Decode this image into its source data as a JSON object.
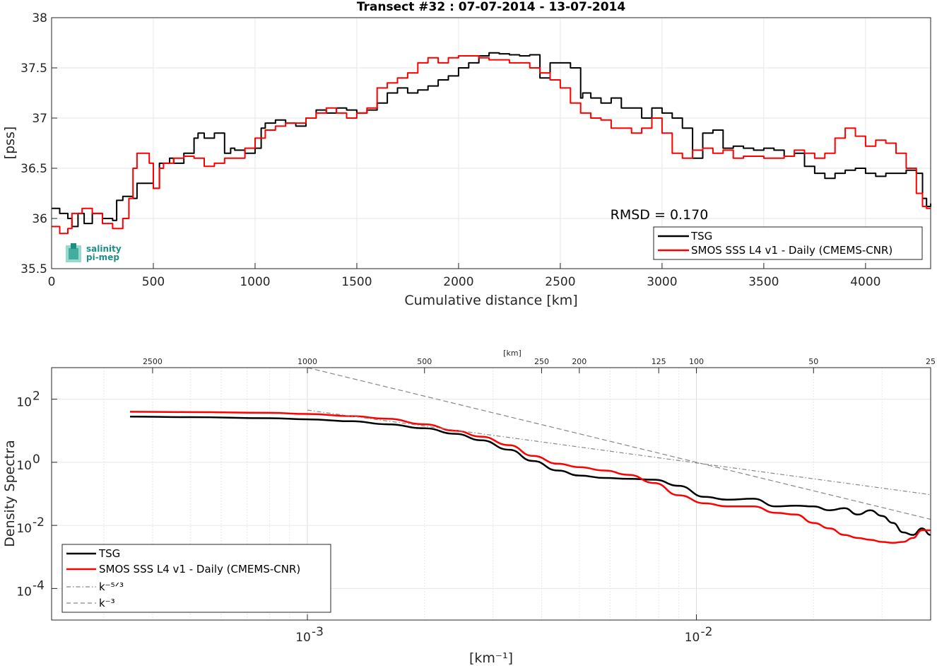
{
  "chart_data": [
    {
      "type": "line",
      "title": "Transect #32 : 07-07-2014 - 13-07-2014",
      "xlabel": "Cumulative distance [km]",
      "ylabel": "[pss]",
      "xlim": [
        0,
        4320
      ],
      "ylim": [
        35.5,
        38
      ],
      "xticks": [
        0,
        500,
        1000,
        1500,
        2000,
        2500,
        3000,
        3500,
        4000
      ],
      "yticks": [
        35.5,
        36,
        36.5,
        37,
        37.5,
        38
      ],
      "grid": true,
      "legend_position": "bottom-right",
      "annotation": "RMSD = 0.170",
      "logo": {
        "line1": "salinity",
        "line2": "pi-mep"
      },
      "series": [
        {
          "name": "TSG",
          "color": "#000000",
          "x": [
            0,
            40,
            80,
            100,
            130,
            160,
            200,
            250,
            300,
            320,
            350,
            400,
            420,
            450,
            500,
            530,
            550,
            580,
            600,
            650,
            700,
            720,
            750,
            800,
            850,
            880,
            900,
            950,
            1000,
            1030,
            1050,
            1100,
            1150,
            1200,
            1250,
            1300,
            1350,
            1400,
            1450,
            1500,
            1550,
            1600,
            1650,
            1700,
            1750,
            1800,
            1850,
            1900,
            1950,
            2000,
            2050,
            2100,
            2150,
            2200,
            2250,
            2300,
            2350,
            2400,
            2450,
            2500,
            2550,
            2600,
            2610,
            2650,
            2700,
            2750,
            2800,
            2850,
            2900,
            2950,
            3000,
            3050,
            3100,
            3150,
            3200,
            3250,
            3300,
            3350,
            3400,
            3450,
            3500,
            3550,
            3600,
            3650,
            3700,
            3750,
            3800,
            3850,
            3900,
            3950,
            4000,
            4050,
            4100,
            4150,
            4200,
            4250,
            4280,
            4300,
            4320
          ],
          "y": [
            36.1,
            36.05,
            36.0,
            35.92,
            36.05,
            35.95,
            36.05,
            36.0,
            35.98,
            36.18,
            36.22,
            36.2,
            36.35,
            36.35,
            36.3,
            36.55,
            36.55,
            36.6,
            36.55,
            36.65,
            36.8,
            36.85,
            36.8,
            36.85,
            36.65,
            36.7,
            36.68,
            36.65,
            36.7,
            36.9,
            36.95,
            36.98,
            36.95,
            36.92,
            37.0,
            37.08,
            37.05,
            37.1,
            37.08,
            37.05,
            37.08,
            37.15,
            37.25,
            37.3,
            37.25,
            37.28,
            37.32,
            37.38,
            37.42,
            37.5,
            37.55,
            37.62,
            37.65,
            37.64,
            37.63,
            37.62,
            37.63,
            37.4,
            37.55,
            37.55,
            37.5,
            37.2,
            37.25,
            37.2,
            37.15,
            37.2,
            37.1,
            37.1,
            37.0,
            37.1,
            37.05,
            37.0,
            36.9,
            36.6,
            36.85,
            36.88,
            36.7,
            36.72,
            36.7,
            36.68,
            36.7,
            36.68,
            36.62,
            36.65,
            36.52,
            36.45,
            36.4,
            36.45,
            36.48,
            36.5,
            36.45,
            36.42,
            36.45,
            36.45,
            36.48,
            36.45,
            36.2,
            36.12,
            36.15
          ]
        },
        {
          "name": "SMOS SSS L4 v1 - Daily (CMEMS-CNR)",
          "color": "#ff0000",
          "x": [
            0,
            40,
            80,
            100,
            150,
            200,
            250,
            300,
            350,
            380,
            400,
            420,
            450,
            480,
            500,
            530,
            550,
            580,
            600,
            650,
            700,
            750,
            800,
            850,
            900,
            950,
            1000,
            1050,
            1100,
            1150,
            1200,
            1250,
            1300,
            1350,
            1400,
            1450,
            1500,
            1550,
            1600,
            1650,
            1700,
            1750,
            1800,
            1850,
            1900,
            1950,
            2000,
            2050,
            2100,
            2150,
            2200,
            2250,
            2300,
            2350,
            2400,
            2450,
            2500,
            2550,
            2600,
            2650,
            2700,
            2750,
            2800,
            2850,
            2900,
            2950,
            3000,
            3050,
            3100,
            3150,
            3200,
            3250,
            3300,
            3350,
            3400,
            3450,
            3500,
            3550,
            3600,
            3650,
            3700,
            3750,
            3800,
            3850,
            3900,
            3950,
            4000,
            4050,
            4100,
            4150,
            4200,
            4250,
            4280,
            4300,
            4320
          ],
          "y": [
            35.92,
            35.85,
            35.9,
            36.05,
            36.1,
            36.05,
            35.95,
            35.9,
            36.0,
            36.2,
            36.5,
            36.65,
            36.65,
            36.55,
            36.3,
            36.5,
            36.55,
            36.55,
            36.6,
            36.62,
            36.6,
            36.52,
            36.55,
            36.6,
            36.6,
            36.7,
            36.8,
            36.88,
            36.92,
            36.95,
            36.95,
            37.0,
            37.05,
            37.1,
            37.05,
            37.0,
            37.05,
            37.1,
            37.3,
            37.35,
            37.4,
            37.45,
            37.55,
            37.6,
            37.55,
            37.6,
            37.62,
            37.62,
            37.6,
            37.58,
            37.58,
            37.55,
            37.55,
            37.5,
            37.45,
            37.38,
            37.3,
            37.15,
            37.05,
            37.0,
            36.98,
            36.9,
            36.9,
            36.85,
            36.9,
            37.0,
            36.85,
            36.65,
            36.6,
            36.68,
            36.7,
            36.65,
            36.68,
            36.6,
            36.62,
            36.62,
            36.6,
            36.6,
            36.62,
            36.68,
            36.65,
            36.6,
            36.65,
            36.8,
            36.9,
            36.82,
            36.72,
            36.78,
            36.75,
            36.65,
            36.5,
            36.25,
            36.12,
            36.1,
            36.1
          ]
        }
      ]
    },
    {
      "type": "line",
      "xlabel": "[km⁻¹]",
      "ylabel": "Density Spectra",
      "xscale": "log",
      "yscale": "log",
      "xlim": [
        0.00022,
        0.04
      ],
      "ylim": [
        1e-05,
        1000
      ],
      "xticks": [
        0.001,
        0.01
      ],
      "xtick_labels": [
        {
          "base": "10",
          "exp": "-3"
        },
        {
          "base": "10",
          "exp": "-2"
        }
      ],
      "yticks": [
        0.0001,
        0.01,
        1,
        100
      ],
      "ytick_labels": [
        {
          "base": "10",
          "exp": "-4"
        },
        {
          "base": "10",
          "exp": "-2"
        },
        {
          "base": "10",
          "exp": "0"
        },
        {
          "base": "10",
          "exp": "2"
        }
      ],
      "top_axis_label": "[km]",
      "top_ticks_km": [
        2500,
        1000,
        500,
        250,
        200,
        125,
        100,
        50,
        25
      ],
      "grid": true,
      "legend_position": "bottom-left",
      "series": [
        {
          "name": "TSG",
          "color": "#000000",
          "x": [
            0.00035,
            0.0005,
            0.0008,
            0.001,
            0.0013,
            0.0016,
            0.002,
            0.0024,
            0.0028,
            0.0033,
            0.0038,
            0.0044,
            0.005,
            0.0058,
            0.0067,
            0.0078,
            0.009,
            0.0105,
            0.012,
            0.014,
            0.016,
            0.018,
            0.02,
            0.022,
            0.024,
            0.026,
            0.028,
            0.03,
            0.032,
            0.034,
            0.036,
            0.038,
            0.04
          ],
          "y": [
            28,
            27,
            25,
            23,
            20,
            16,
            12,
            8,
            5,
            2.5,
            1.1,
            0.55,
            0.38,
            0.32,
            0.3,
            0.28,
            0.18,
            0.08,
            0.065,
            0.07,
            0.04,
            0.042,
            0.04,
            0.03,
            0.035,
            0.022,
            0.03,
            0.02,
            0.012,
            0.006,
            0.005,
            0.008,
            0.005
          ]
        },
        {
          "name": "SMOS SSS L4 v1 - Daily (CMEMS-CNR)",
          "color": "#ff0000",
          "x": [
            0.00035,
            0.0005,
            0.0008,
            0.001,
            0.0013,
            0.0016,
            0.002,
            0.0024,
            0.0028,
            0.0033,
            0.0038,
            0.0044,
            0.005,
            0.0058,
            0.0067,
            0.0078,
            0.009,
            0.0105,
            0.012,
            0.014,
            0.016,
            0.018,
            0.02,
            0.022,
            0.024,
            0.026,
            0.028,
            0.03,
            0.032,
            0.034,
            0.036,
            0.038,
            0.04
          ],
          "y": [
            40,
            39,
            37,
            34,
            29,
            24,
            16,
            10,
            6.5,
            3.5,
            1.6,
            0.9,
            0.7,
            0.55,
            0.4,
            0.22,
            0.09,
            0.05,
            0.04,
            0.04,
            0.025,
            0.022,
            0.012,
            0.008,
            0.005,
            0.004,
            0.0035,
            0.003,
            0.0028,
            0.003,
            0.004,
            0.007,
            0.007
          ]
        },
        {
          "name": "k⁻⁵ᐟ³",
          "color": "#888888",
          "dash": "dashdot",
          "x": [
            0.001,
            0.04
          ],
          "y": [
            45,
            0.094
          ]
        },
        {
          "name": "k⁻³",
          "color": "#888888",
          "dash": "dashed",
          "x": [
            0.001,
            0.04
          ],
          "y": [
            1000,
            0.0156
          ]
        }
      ]
    }
  ]
}
